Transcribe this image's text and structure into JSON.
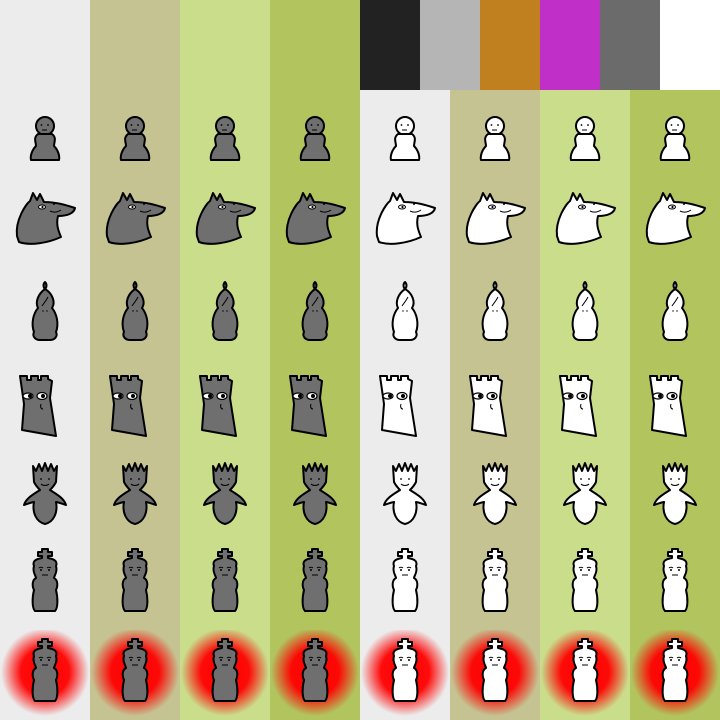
{
  "sprite_sheet": {
    "columns": [
      {
        "color": "piece-dark",
        "board": "light-gray"
      },
      {
        "color": "piece-dark",
        "board": "khaki"
      },
      {
        "color": "piece-dark",
        "board": "pale-green"
      },
      {
        "color": "piece-dark",
        "board": "olive-green"
      },
      {
        "color": "piece-light",
        "board": "light-gray"
      },
      {
        "color": "piece-light",
        "board": "khaki"
      },
      {
        "color": "piece-light",
        "board": "pale-green"
      },
      {
        "color": "piece-light",
        "board": "olive-green"
      }
    ],
    "rows": [
      "pawn",
      "knight",
      "bishop",
      "rook",
      "queen",
      "king",
      "king-in-check"
    ]
  },
  "colors": {
    "board_tiles": [
      "#ececec",
      "#c5c391",
      "#cadd8b",
      "#b2c45d"
    ],
    "piece_dark": "#6f6f6f",
    "piece_light": "#ffffff",
    "outline": "#000000",
    "check_glow": "#ff0000"
  },
  "palette_swatches": [
    "#222222",
    "#b5b5b5",
    "#c08020",
    "#c030c8",
    "#6b6b6b",
    "#ffffff"
  ]
}
